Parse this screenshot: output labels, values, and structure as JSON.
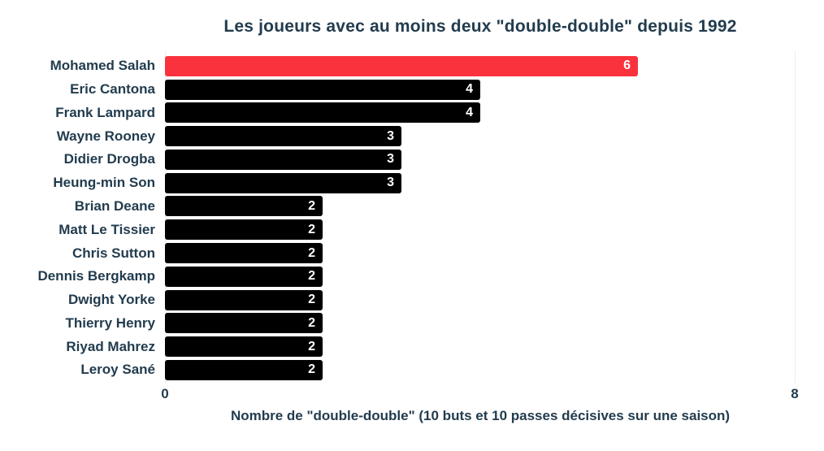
{
  "chart_data": {
    "type": "bar",
    "orientation": "horizontal",
    "title": "Les joueurs avec au moins deux \"double-double\" depuis 1992",
    "xlabel": "Nombre de \"double-double\" (10 buts et 10 passes décisives sur une saison)",
    "categories": [
      "Mohamed Salah",
      "Eric Cantona",
      "Frank Lampard",
      "Wayne Rooney",
      "Didier Drogba",
      "Heung-min Son",
      "Brian Deane",
      "Matt Le Tissier",
      "Chris Sutton",
      "Dennis Bergkamp",
      "Dwight Yorke",
      "Thierry Henry",
      "Riyad Mahrez",
      "Leroy Sané"
    ],
    "values": [
      6,
      4,
      4,
      3,
      3,
      3,
      2,
      2,
      2,
      2,
      2,
      2,
      2,
      2
    ],
    "xlim": [
      0,
      8
    ],
    "x_ticks": [
      "0",
      "8"
    ],
    "grid": "vertical-gridline-at-8-only-faint",
    "legend": "none",
    "value_labels": "inside-bar-right",
    "highlight_category": "Mohamed Salah",
    "colors": {
      "default_bar": "#000000",
      "highlight_bar": "#f9323e",
      "text": "#223c4e",
      "value_label": "#ffffff",
      "gridline": "#ededed",
      "background": "#ffffff"
    }
  }
}
